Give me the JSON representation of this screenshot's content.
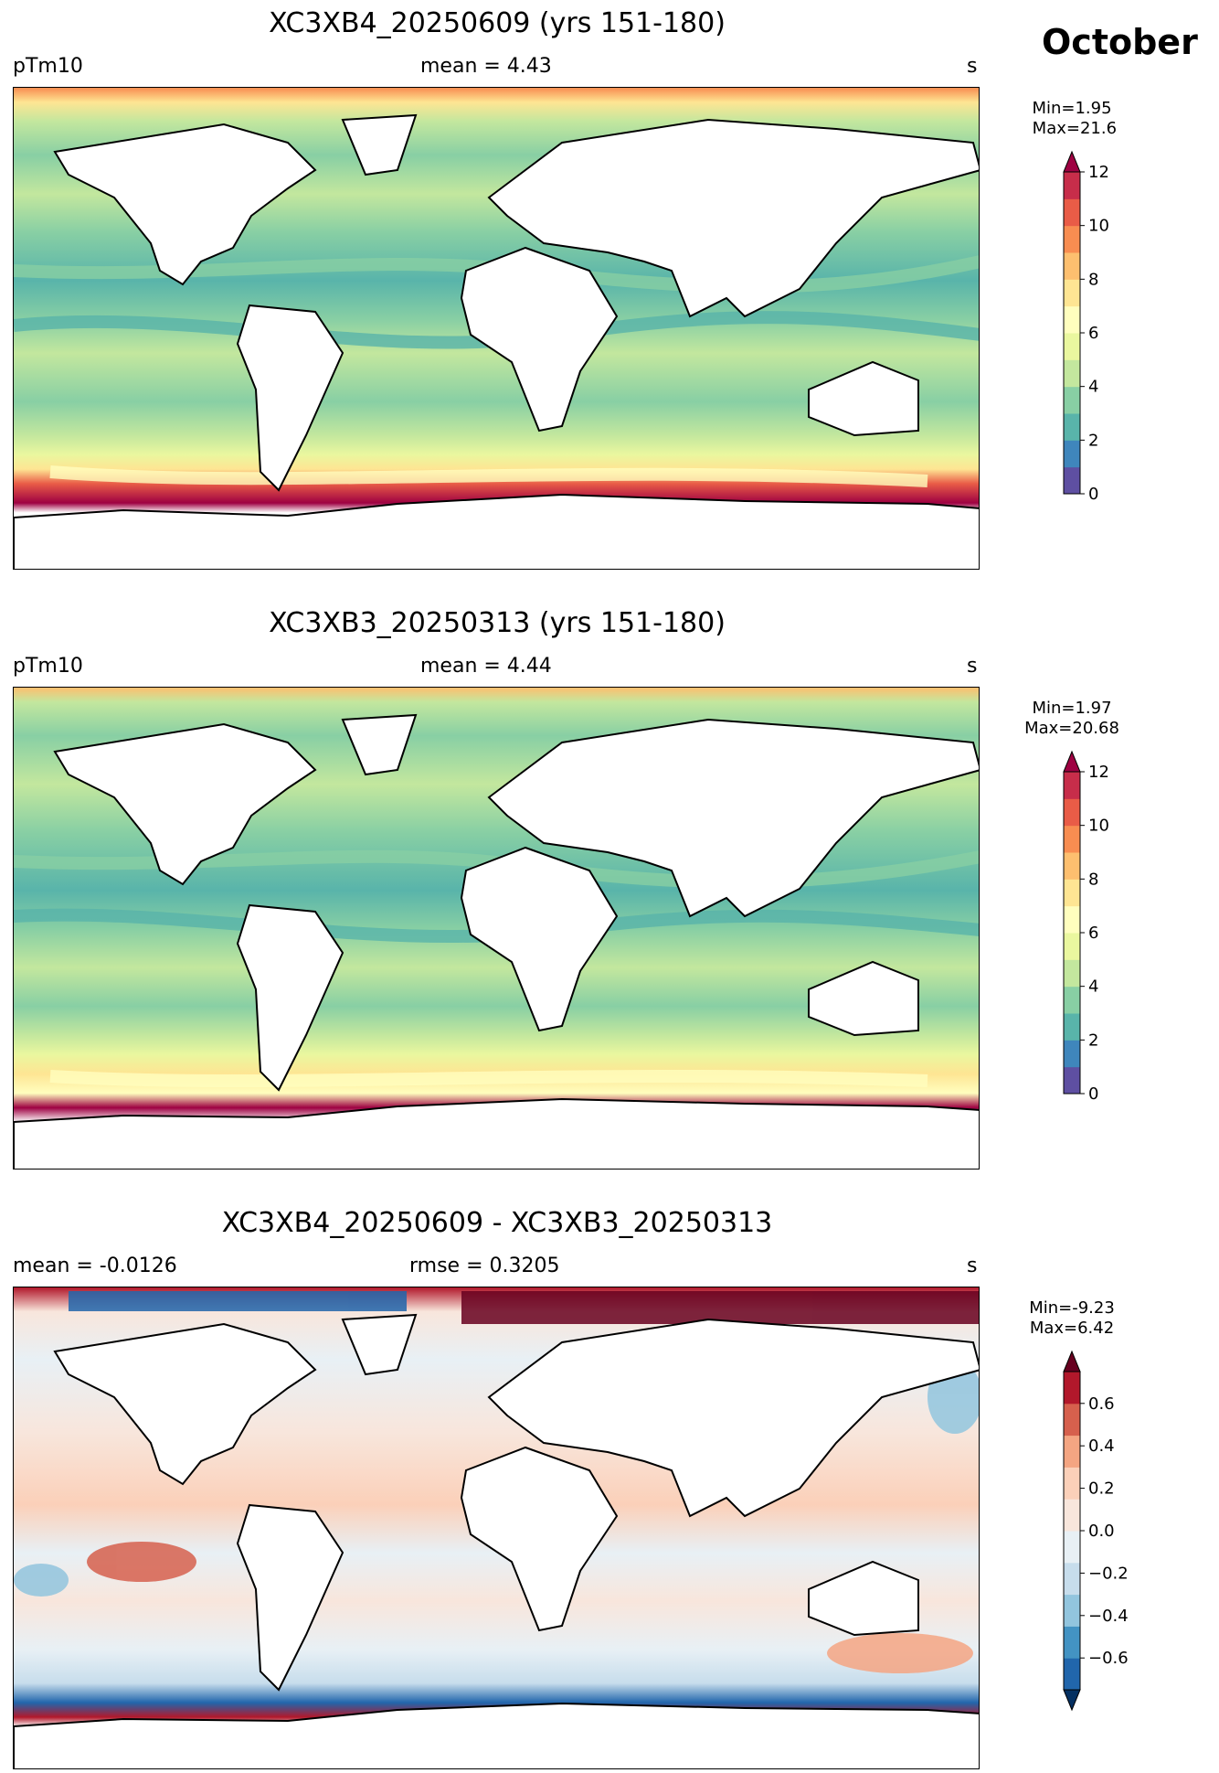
{
  "header": {
    "month": "October"
  },
  "panels": [
    {
      "title": "XC3XB4_20250609 (yrs 151-180)",
      "left_label": "pTm10",
      "center_label": "mean = 4.43",
      "right_label": "s",
      "minmax": "Min=1.95\n Max=21.6",
      "colorbar": {
        "ticks": [
          "0",
          "2",
          "4",
          "6",
          "8",
          "10",
          "12"
        ],
        "colors": [
          "#5e4fa2",
          "#3f86bc",
          "#59b4aa",
          "#88cfa4",
          "#c3e79e",
          "#eaf79f",
          "#fffebe",
          "#fee593",
          "#fdbf6f",
          "#f88d51",
          "#e95c47",
          "#c72d4a",
          "#9e0142"
        ],
        "extend": "max"
      }
    },
    {
      "title": "XC3XB3_20250313 (yrs 151-180)",
      "left_label": "pTm10",
      "center_label": "mean = 4.44",
      "right_label": "s",
      "minmax": "Min=1.97\nMax=20.68",
      "colorbar": {
        "ticks": [
          "0",
          "2",
          "4",
          "6",
          "8",
          "10",
          "12"
        ],
        "colors": [
          "#5e4fa2",
          "#3f86bc",
          "#59b4aa",
          "#88cfa4",
          "#c3e79e",
          "#eaf79f",
          "#fffebe",
          "#fee593",
          "#fdbf6f",
          "#f88d51",
          "#e95c47",
          "#c72d4a",
          "#9e0142"
        ],
        "extend": "max"
      }
    },
    {
      "title": "XC3XB4_20250609 - XC3XB3_20250313",
      "left_label": "mean = -0.0126",
      "center_label": "rmse = 0.3205",
      "right_label": "s",
      "minmax": "Min=-9.23\nMax=6.42",
      "colorbar": {
        "ticks": [
          "−0.6",
          "−0.4",
          "−0.2",
          "0.0",
          "0.2",
          "0.4",
          "0.6"
        ],
        "colors": [
          "#053061",
          "#2166ac",
          "#4393c3",
          "#92c5de",
          "#c7ddec",
          "#e8f0f5",
          "#f8e6dc",
          "#fbd0b9",
          "#f4a582",
          "#d6604d",
          "#b2182b",
          "#67001f"
        ],
        "extend": "both"
      }
    }
  ]
}
